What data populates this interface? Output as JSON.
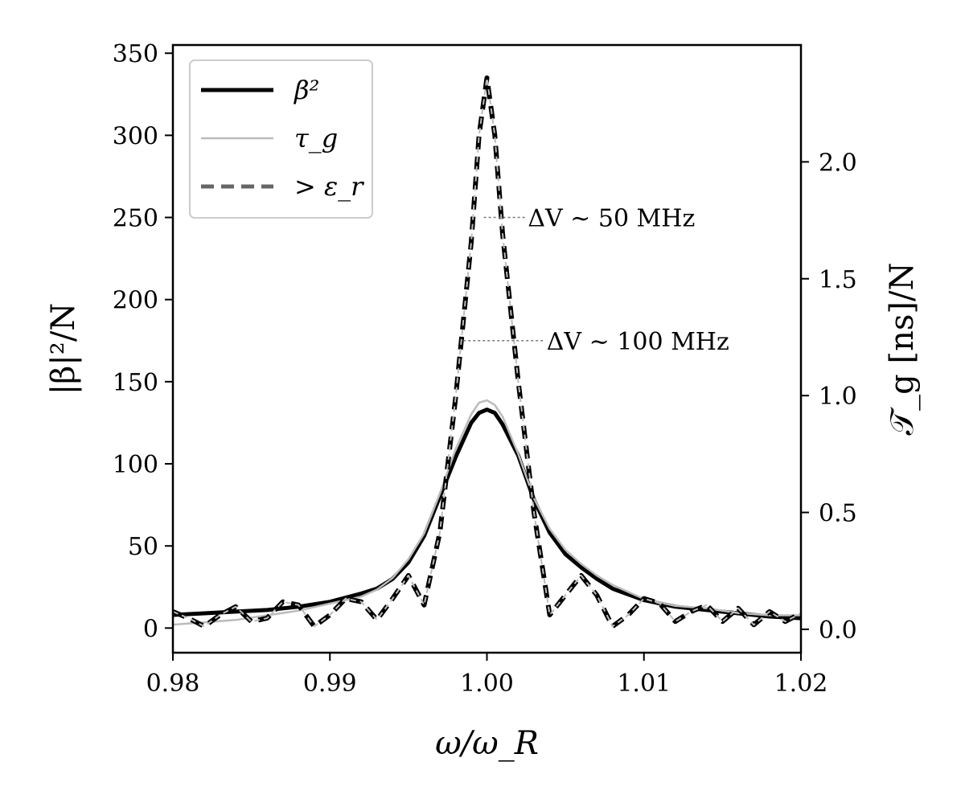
{
  "chart_data": {
    "type": "line",
    "x": {
      "label": "ω/ω_R",
      "range": [
        0.98,
        1.02
      ],
      "ticks": [
        0.98,
        0.99,
        1.0,
        1.01,
        1.02
      ],
      "tick_labels": [
        "0.98",
        "0.99",
        "1.00",
        "1.01",
        "1.02"
      ]
    },
    "y_left": {
      "label": "|β|²/N",
      "range": [
        -15,
        355
      ],
      "ticks": [
        0,
        50,
        100,
        150,
        200,
        250,
        300,
        350
      ],
      "tick_labels": [
        "0",
        "50",
        "100",
        "150",
        "200",
        "250",
        "300",
        "350"
      ]
    },
    "y_right": {
      "label": "𝒯_g [ns]/N",
      "range": [
        -0.1,
        2.5
      ],
      "ticks": [
        0.0,
        0.5,
        1.0,
        1.5,
        2.0
      ],
      "tick_labels": [
        "0.0",
        "0.5",
        "1.0",
        "1.5",
        "2.0"
      ]
    },
    "legend": {
      "position": "top-left",
      "entries": [
        {
          "label": "β²",
          "style": "thick-solid",
          "color": "#000000"
        },
        {
          "label": "τ_g",
          "style": "thin-solid",
          "color": "#bbbbbb"
        },
        {
          "label": "> ε_r",
          "style": "dashed",
          "color": "#666666"
        }
      ]
    },
    "annotations": [
      {
        "text": "ΔV ∼ 50 MHz",
        "y": 250,
        "x_from": 0.9998,
        "x_to": 1.0025
      },
      {
        "text": "ΔV ∼ 100 MHz",
        "y": 175,
        "x_from": 0.9985,
        "x_to": 1.0037
      }
    ],
    "series": [
      {
        "name": "β²",
        "axis": "left",
        "style": "thick-solid",
        "color": "#000000",
        "points": [
          [
            0.98,
            8
          ],
          [
            0.982,
            9
          ],
          [
            0.984,
            10
          ],
          [
            0.986,
            11
          ],
          [
            0.988,
            13
          ],
          [
            0.99,
            16
          ],
          [
            0.992,
            21
          ],
          [
            0.993,
            24
          ],
          [
            0.994,
            30
          ],
          [
            0.995,
            40
          ],
          [
            0.996,
            56
          ],
          [
            0.997,
            80
          ],
          [
            0.998,
            104
          ],
          [
            0.999,
            125
          ],
          [
            0.9995,
            131
          ],
          [
            1.0,
            133
          ],
          [
            1.0005,
            131
          ],
          [
            1.001,
            124
          ],
          [
            1.002,
            105
          ],
          [
            1.003,
            78
          ],
          [
            1.004,
            58
          ],
          [
            1.005,
            45
          ],
          [
            1.006,
            37
          ],
          [
            1.007,
            30
          ],
          [
            1.008,
            24
          ],
          [
            1.01,
            17
          ],
          [
            1.012,
            13
          ],
          [
            1.014,
            11
          ],
          [
            1.016,
            9
          ],
          [
            1.018,
            7
          ],
          [
            1.02,
            6
          ]
        ]
      },
      {
        "name": "τ_g",
        "axis": "right",
        "style": "thin-solid",
        "color": "#bbbbbb",
        "points": [
          [
            0.98,
            0.02
          ],
          [
            0.982,
            0.03
          ],
          [
            0.984,
            0.04
          ],
          [
            0.986,
            0.06
          ],
          [
            0.988,
            0.08
          ],
          [
            0.99,
            0.11
          ],
          [
            0.992,
            0.14
          ],
          [
            0.993,
            0.17
          ],
          [
            0.994,
            0.22
          ],
          [
            0.995,
            0.3
          ],
          [
            0.996,
            0.41
          ],
          [
            0.997,
            0.58
          ],
          [
            0.998,
            0.77
          ],
          [
            0.999,
            0.92
          ],
          [
            0.9995,
            0.97
          ],
          [
            1.0,
            0.98
          ],
          [
            1.0005,
            0.96
          ],
          [
            1.001,
            0.91
          ],
          [
            1.002,
            0.75
          ],
          [
            1.003,
            0.56
          ],
          [
            1.004,
            0.43
          ],
          [
            1.005,
            0.34
          ],
          [
            1.006,
            0.28
          ],
          [
            1.007,
            0.23
          ],
          [
            1.008,
            0.19
          ],
          [
            1.01,
            0.13
          ],
          [
            1.012,
            0.1
          ],
          [
            1.014,
            0.09
          ],
          [
            1.016,
            0.07
          ],
          [
            1.018,
            0.06
          ],
          [
            1.02,
            0.06
          ]
        ]
      },
      {
        "name": "> ε_r",
        "axis": "left",
        "style": "dashed",
        "color": "#666666",
        "points": [
          [
            0.98,
            10
          ],
          [
            0.981,
            6
          ],
          [
            0.982,
            1
          ],
          [
            0.983,
            8
          ],
          [
            0.984,
            13
          ],
          [
            0.985,
            4
          ],
          [
            0.986,
            6
          ],
          [
            0.987,
            16
          ],
          [
            0.988,
            14
          ],
          [
            0.989,
            1
          ],
          [
            0.99,
            8
          ],
          [
            0.991,
            18
          ],
          [
            0.992,
            16
          ],
          [
            0.993,
            5
          ],
          [
            0.994,
            18
          ],
          [
            0.995,
            32
          ],
          [
            0.996,
            14
          ],
          [
            0.997,
            58
          ],
          [
            0.998,
            140
          ],
          [
            0.999,
            235
          ],
          [
            0.9995,
            300
          ],
          [
            1.0,
            335
          ],
          [
            1.0005,
            300
          ],
          [
            1.001,
            240
          ],
          [
            1.002,
            150
          ],
          [
            1.003,
            70
          ],
          [
            1.004,
            8
          ],
          [
            1.005,
            20
          ],
          [
            1.006,
            32
          ],
          [
            1.007,
            20
          ],
          [
            1.008,
            1
          ],
          [
            1.009,
            8
          ],
          [
            1.01,
            18
          ],
          [
            1.011,
            15
          ],
          [
            1.012,
            4
          ],
          [
            1.013,
            10
          ],
          [
            1.014,
            14
          ],
          [
            1.015,
            4
          ],
          [
            1.016,
            12
          ],
          [
            1.017,
            2
          ],
          [
            1.018,
            10
          ],
          [
            1.019,
            4
          ],
          [
            1.02,
            9
          ]
        ]
      }
    ]
  }
}
